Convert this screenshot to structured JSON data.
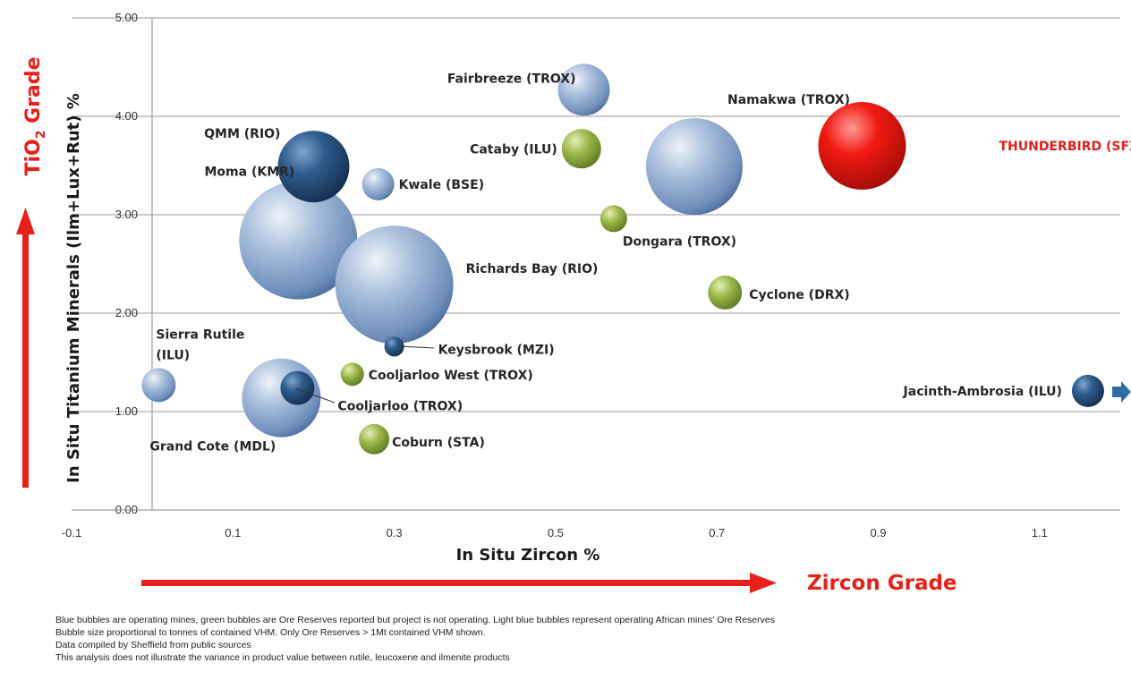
{
  "chart_data": {
    "type": "scatter",
    "subtype": "bubble",
    "xlabel": "In Situ Zircon %",
    "ylabel": "In Situ Titanium Minerals (Ilm+Lux+Rut) %",
    "xlim": [
      -0.1,
      1.2
    ],
    "ylim": [
      0,
      5
    ],
    "x_ticks": [
      "-0.1",
      "0.1",
      "0.3",
      "0.5",
      "0.7",
      "0.9",
      "1.1"
    ],
    "y_ticks": [
      "0.00",
      "1.00",
      "2.00",
      "3.00",
      "4.00",
      "5.00"
    ],
    "grid": "horizontal",
    "colors": {
      "operating": "#1f4e79",
      "african_operating": "#8eaad1",
      "not_operating": "#8dae3c",
      "thunderbird": "#e11a14",
      "arrow": "#e8201a",
      "offchart_arrow": "#2e6da4"
    },
    "bubbles": [
      {
        "name": "Fairbreeze (TROX)",
        "x": 0.535,
        "y": 4.27,
        "size": 29,
        "category": "african_operating"
      },
      {
        "name": "Namakwa (TROX)",
        "x": 0.672,
        "y": 3.49,
        "size": 54,
        "category": "african_operating"
      },
      {
        "name": "THUNDERBIRD (SFX)",
        "x": 0.88,
        "y": 3.7,
        "size": 49,
        "category": "thunderbird"
      },
      {
        "name": "QMM (RIO)",
        "x": 0.2,
        "y": 3.49,
        "size": 40,
        "category": "operating"
      },
      {
        "name": "Cataby (ILU)",
        "x": 0.532,
        "y": 3.67,
        "size": 22,
        "category": "not_operating"
      },
      {
        "name": "Kwale (BSE)",
        "x": 0.28,
        "y": 3.31,
        "size": 18,
        "category": "african_operating"
      },
      {
        "name": "Moma (KMR)",
        "x": 0.181,
        "y": 2.74,
        "size": 66,
        "category": "african_operating"
      },
      {
        "name": "Dongara (TROX)",
        "x": 0.572,
        "y": 2.96,
        "size": 15,
        "category": "not_operating"
      },
      {
        "name": "Richards Bay (RIO)",
        "x": 0.3,
        "y": 2.29,
        "size": 66,
        "category": "african_operating"
      },
      {
        "name": "Cyclone (DRX)",
        "x": 0.71,
        "y": 2.21,
        "size": 19,
        "category": "not_operating"
      },
      {
        "name": "Keysbrook (MZI)",
        "x": 0.3,
        "y": 1.66,
        "size": 11,
        "category": "operating"
      },
      {
        "name": "Sierra Rutile (ILU)",
        "x": 0.008,
        "y": 1.27,
        "size": 19,
        "category": "african_operating"
      },
      {
        "name": "Cooljarloo West (TROX)",
        "x": 0.248,
        "y": 1.38,
        "size": 13,
        "category": "not_operating"
      },
      {
        "name": "Grand Cote (MDL)",
        "x": 0.16,
        "y": 1.14,
        "size": 44,
        "category": "african_operating"
      },
      {
        "name": "Cooljarloo (TROX)",
        "x": 0.18,
        "y": 1.24,
        "size": 19,
        "category": "operating"
      },
      {
        "name": "Coburn (STA)",
        "x": 0.275,
        "y": 0.72,
        "size": 17,
        "category": "not_operating"
      },
      {
        "name": "Jacinth-Ambrosia (ILU)",
        "x": 1.16,
        "y": 1.21,
        "size": 18,
        "category": "operating"
      }
    ]
  },
  "labels": {
    "tio2_grade_main": "TiO",
    "tio2_grade_sub": "2",
    "tio2_grade_rest": " Grade",
    "zircon_grade": "Zircon Grade"
  },
  "notes": [
    "Blue bubbles are operating mines, green bubbles are Ore Reserves reported but project is not operating. Light blue bubbles represent operating African mines' Ore Reserves",
    "Bubble size proportional to tonnes of contained VHM. Only Ore Reserves > 1Mt contained VHM shown.",
    "Data compiled by Sheffield from public sources",
    "This analysis does not illustrate the variance in product value between rutile, leucoxene and ilmenite products"
  ]
}
